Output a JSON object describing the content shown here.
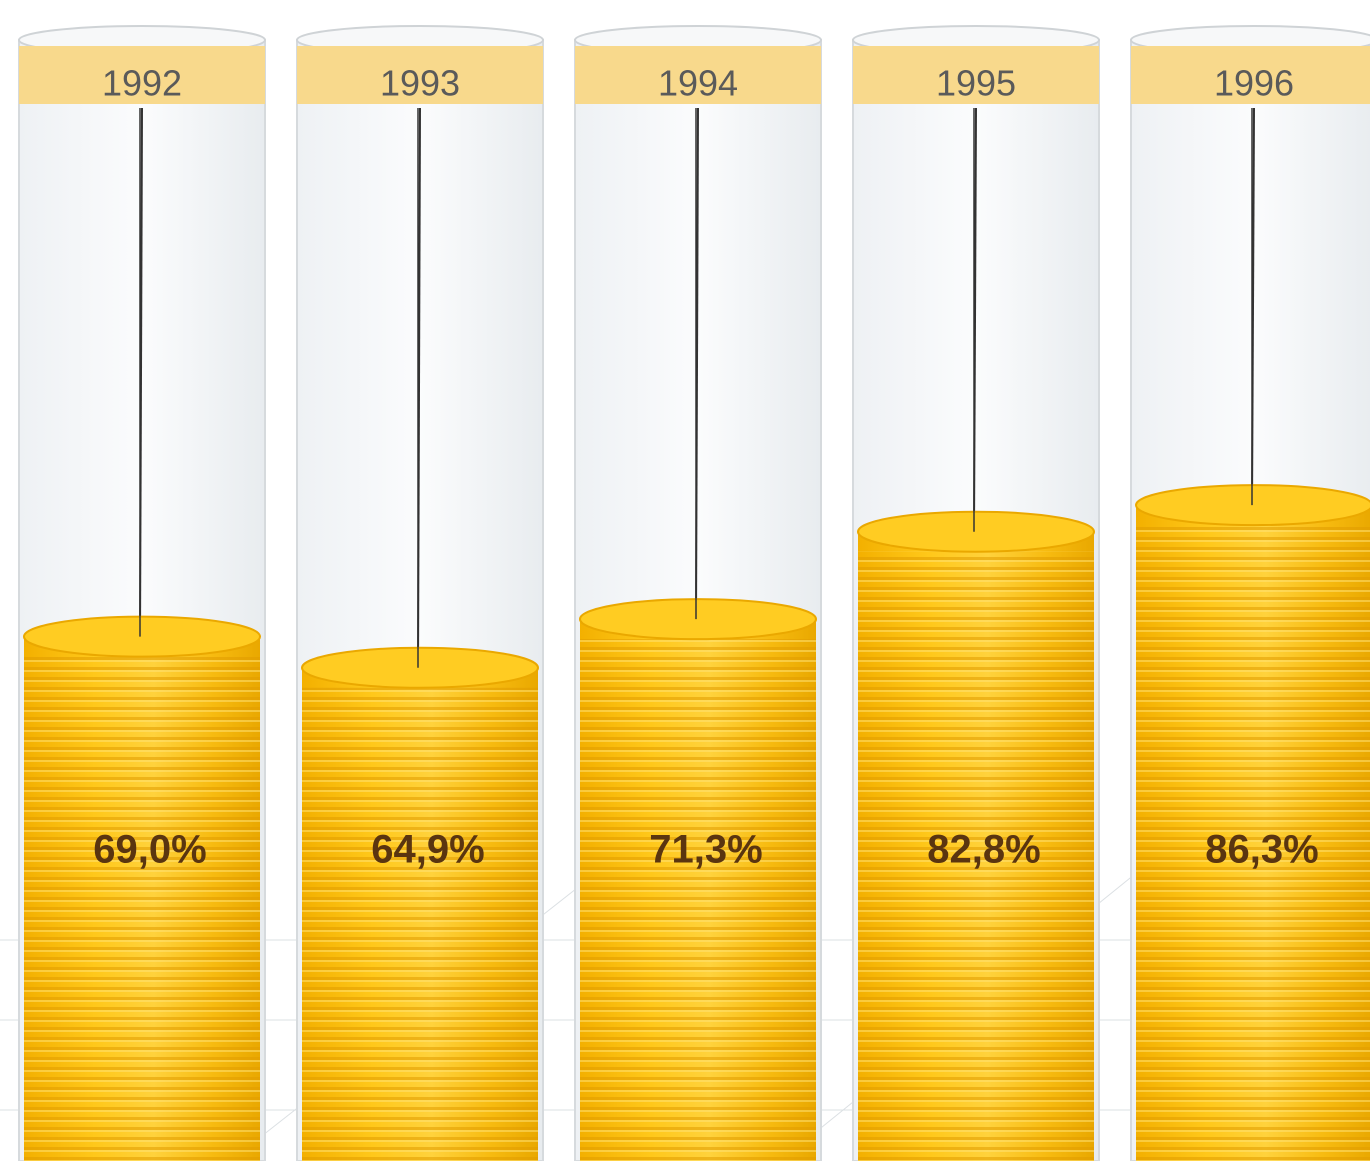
{
  "chart_data": {
    "type": "bar",
    "categories": [
      "1992",
      "1993",
      "1994",
      "1995",
      "1996"
    ],
    "values": [
      69.0,
      64.9,
      71.3,
      82.8,
      86.3
    ],
    "value_labels": [
      "69,0%",
      "64,9%",
      "71,3%",
      "82,8%",
      "86,3%"
    ],
    "color": "#f5b800"
  }
}
